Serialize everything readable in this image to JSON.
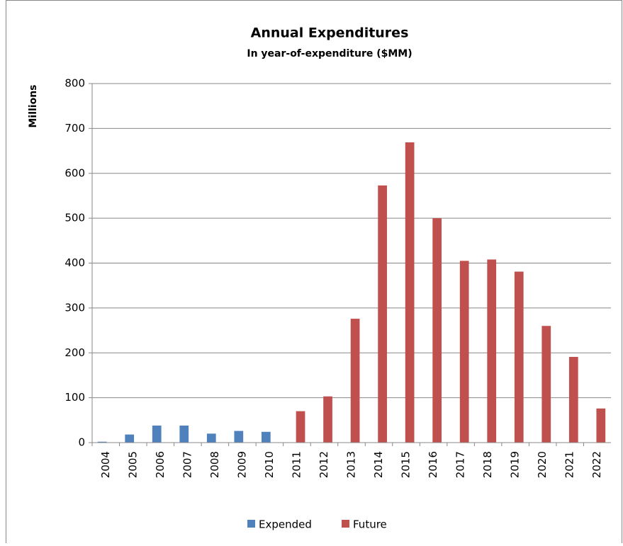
{
  "chart_data": {
    "type": "bar",
    "title": "Annual Expenditures",
    "subtitle": "In year-of-expenditure ($MM)",
    "y_label": "Millions",
    "categories": [
      "2004",
      "2005",
      "2006",
      "2007",
      "2008",
      "2009",
      "2010",
      "2011",
      "2012",
      "2013",
      "2014",
      "2015",
      "2016",
      "2017",
      "2018",
      "2019",
      "2020",
      "2021",
      "2022"
    ],
    "series": [
      {
        "name": "Expended",
        "color": "#4f81bd",
        "values": [
          2,
          18,
          38,
          38,
          20,
          26,
          24,
          null,
          null,
          null,
          null,
          null,
          null,
          null,
          null,
          null,
          null,
          null,
          null
        ]
      },
      {
        "name": "Future",
        "color": "#c0504d",
        "values": [
          null,
          null,
          null,
          null,
          null,
          null,
          null,
          70,
          103,
          276,
          573,
          669,
          500,
          405,
          408,
          381,
          260,
          191,
          76
        ]
      }
    ],
    "ylim": [
      0,
      800
    ],
    "yticks": [
      0,
      100,
      200,
      300,
      400,
      500,
      600,
      700,
      800
    ],
    "grid": true,
    "legend": "bottom"
  }
}
